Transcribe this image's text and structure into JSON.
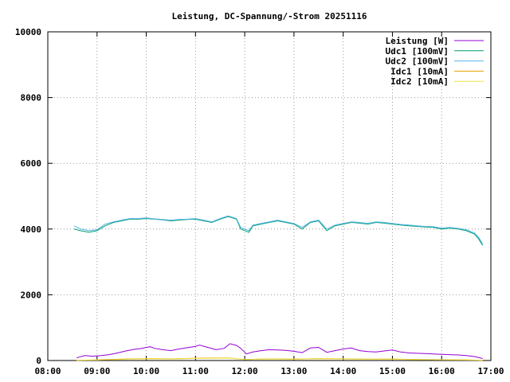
{
  "chart_data": {
    "type": "line",
    "title": "Leistung, DC-Spannung/-Strom 20251116",
    "xlabel": "",
    "ylabel": "",
    "x_ticks": [
      "08:00",
      "09:00",
      "10:00",
      "11:00",
      "12:00",
      "13:00",
      "14:00",
      "15:00",
      "16:00",
      "17:00"
    ],
    "y_ticks": [
      "0",
      "2000",
      "4000",
      "6000",
      "8000",
      "10000"
    ],
    "xlim": [
      "08:00",
      "17:00"
    ],
    "ylim": [
      0,
      10000
    ],
    "grid": true,
    "legend_position": "top-right",
    "series": [
      {
        "name": "Leistung [W]",
        "color": "#9400d3",
        "points": [
          [
            "08:35",
            80
          ],
          [
            "08:45",
            150
          ],
          [
            "08:55",
            130
          ],
          [
            "09:05",
            150
          ],
          [
            "09:15",
            180
          ],
          [
            "09:25",
            230
          ],
          [
            "09:35",
            290
          ],
          [
            "09:45",
            340
          ],
          [
            "09:55",
            370
          ],
          [
            "10:00",
            400
          ],
          [
            "10:05",
            420
          ],
          [
            "10:10",
            370
          ],
          [
            "10:20",
            330
          ],
          [
            "10:30",
            300
          ],
          [
            "10:40",
            350
          ],
          [
            "10:50",
            390
          ],
          [
            "11:00",
            430
          ],
          [
            "11:05",
            470
          ],
          [
            "11:15",
            400
          ],
          [
            "11:25",
            330
          ],
          [
            "11:35",
            370
          ],
          [
            "11:42",
            510
          ],
          [
            "11:50",
            460
          ],
          [
            "11:55",
            370
          ],
          [
            "12:02",
            200
          ],
          [
            "12:10",
            260
          ],
          [
            "12:20",
            300
          ],
          [
            "12:30",
            330
          ],
          [
            "12:40",
            320
          ],
          [
            "12:50",
            310
          ],
          [
            "13:00",
            280
          ],
          [
            "13:10",
            240
          ],
          [
            "13:20",
            380
          ],
          [
            "13:30",
            400
          ],
          [
            "13:40",
            250
          ],
          [
            "13:50",
            300
          ],
          [
            "14:00",
            350
          ],
          [
            "14:10",
            380
          ],
          [
            "14:20",
            300
          ],
          [
            "14:30",
            270
          ],
          [
            "14:40",
            260
          ],
          [
            "14:50",
            290
          ],
          [
            "15:00",
            320
          ],
          [
            "15:10",
            260
          ],
          [
            "15:20",
            230
          ],
          [
            "15:30",
            220
          ],
          [
            "15:40",
            210
          ],
          [
            "15:50",
            200
          ],
          [
            "16:00",
            190
          ],
          [
            "16:10",
            180
          ],
          [
            "16:20",
            170
          ],
          [
            "16:30",
            150
          ],
          [
            "16:40",
            120
          ],
          [
            "16:50",
            60
          ]
        ]
      },
      {
        "name": "Udc1 [100mV]",
        "color": "#009e73",
        "points": [
          [
            "08:32",
            4000
          ],
          [
            "08:40",
            3950
          ],
          [
            "08:50",
            3900
          ],
          [
            "09:00",
            3950
          ],
          [
            "09:10",
            4100
          ],
          [
            "09:20",
            4200
          ],
          [
            "09:30",
            4250
          ],
          [
            "09:40",
            4300
          ],
          [
            "09:50",
            4300
          ],
          [
            "10:00",
            4320
          ],
          [
            "10:10",
            4300
          ],
          [
            "10:20",
            4280
          ],
          [
            "10:30",
            4250
          ],
          [
            "10:40",
            4270
          ],
          [
            "10:50",
            4290
          ],
          [
            "11:00",
            4300
          ],
          [
            "11:10",
            4250
          ],
          [
            "11:20",
            4200
          ],
          [
            "11:30",
            4300
          ],
          [
            "11:40",
            4380
          ],
          [
            "11:50",
            4300
          ],
          [
            "11:55",
            4000
          ],
          [
            "12:05",
            3900
          ],
          [
            "12:10",
            4100
          ],
          [
            "12:20",
            4150
          ],
          [
            "12:30",
            4200
          ],
          [
            "12:40",
            4250
          ],
          [
            "12:50",
            4200
          ],
          [
            "13:00",
            4150
          ],
          [
            "13:10",
            4000
          ],
          [
            "13:20",
            4200
          ],
          [
            "13:30",
            4250
          ],
          [
            "13:40",
            3950
          ],
          [
            "13:50",
            4100
          ],
          [
            "14:00",
            4150
          ],
          [
            "14:10",
            4200
          ],
          [
            "14:20",
            4180
          ],
          [
            "14:30",
            4150
          ],
          [
            "14:40",
            4200
          ],
          [
            "14:50",
            4180
          ],
          [
            "15:00",
            4150
          ],
          [
            "15:10",
            4120
          ],
          [
            "15:20",
            4100
          ],
          [
            "15:30",
            4080
          ],
          [
            "15:40",
            4060
          ],
          [
            "15:50",
            4050
          ],
          [
            "16:00",
            4000
          ],
          [
            "16:10",
            4030
          ],
          [
            "16:20",
            4000
          ],
          [
            "16:30",
            3950
          ],
          [
            "16:40",
            3850
          ],
          [
            "16:45",
            3700
          ],
          [
            "16:50",
            3500
          ]
        ]
      },
      {
        "name": "Udc2 [100mV]",
        "color": "#56b4e9",
        "points": [
          [
            "08:32",
            4100
          ],
          [
            "08:40",
            4000
          ],
          [
            "08:50",
            3950
          ],
          [
            "09:00",
            3980
          ],
          [
            "09:10",
            4150
          ],
          [
            "09:20",
            4220
          ],
          [
            "09:30",
            4270
          ],
          [
            "09:40",
            4320
          ],
          [
            "09:50",
            4320
          ],
          [
            "10:00",
            4340
          ],
          [
            "10:10",
            4310
          ],
          [
            "10:20",
            4290
          ],
          [
            "10:30",
            4270
          ],
          [
            "10:40",
            4290
          ],
          [
            "10:50",
            4300
          ],
          [
            "11:00",
            4320
          ],
          [
            "11:10",
            4270
          ],
          [
            "11:20",
            4220
          ],
          [
            "11:30",
            4320
          ],
          [
            "11:40",
            4400
          ],
          [
            "11:50",
            4320
          ],
          [
            "11:55",
            4050
          ],
          [
            "12:05",
            3950
          ],
          [
            "12:10",
            4120
          ],
          [
            "12:20",
            4170
          ],
          [
            "12:30",
            4220
          ],
          [
            "12:40",
            4270
          ],
          [
            "12:50",
            4220
          ],
          [
            "13:00",
            4170
          ],
          [
            "13:10",
            4050
          ],
          [
            "13:20",
            4220
          ],
          [
            "13:30",
            4270
          ],
          [
            "13:40",
            4000
          ],
          [
            "13:50",
            4120
          ],
          [
            "14:00",
            4170
          ],
          [
            "14:10",
            4220
          ],
          [
            "14:20",
            4200
          ],
          [
            "14:30",
            4170
          ],
          [
            "14:40",
            4220
          ],
          [
            "14:50",
            4200
          ],
          [
            "15:00",
            4170
          ],
          [
            "15:10",
            4140
          ],
          [
            "15:20",
            4120
          ],
          [
            "15:30",
            4100
          ],
          [
            "15:40",
            4080
          ],
          [
            "15:50",
            4070
          ],
          [
            "16:00",
            4030
          ],
          [
            "16:10",
            4050
          ],
          [
            "16:20",
            4020
          ],
          [
            "16:30",
            3980
          ],
          [
            "16:40",
            3880
          ],
          [
            "16:45",
            3750
          ],
          [
            "16:50",
            3550
          ]
        ]
      },
      {
        "name": "Idc1 [10mA]",
        "color": "#e69f00",
        "points": [
          [
            "08:35",
            10
          ],
          [
            "09:00",
            20
          ],
          [
            "09:30",
            40
          ],
          [
            "10:00",
            60
          ],
          [
            "10:30",
            50
          ],
          [
            "11:00",
            70
          ],
          [
            "11:40",
            80
          ],
          [
            "12:00",
            30
          ],
          [
            "12:30",
            50
          ],
          [
            "13:00",
            40
          ],
          [
            "13:30",
            60
          ],
          [
            "14:00",
            50
          ],
          [
            "14:30",
            40
          ],
          [
            "15:00",
            45
          ],
          [
            "15:30",
            30
          ],
          [
            "16:00",
            25
          ],
          [
            "16:30",
            20
          ],
          [
            "16:50",
            10
          ]
        ]
      },
      {
        "name": "Idc2 [10mA]",
        "color": "#f0e442",
        "points": [
          [
            "08:35",
            8
          ],
          [
            "09:00",
            18
          ],
          [
            "09:30",
            35
          ],
          [
            "10:00",
            55
          ],
          [
            "10:30",
            45
          ],
          [
            "11:00",
            62
          ],
          [
            "11:40",
            72
          ],
          [
            "12:00",
            28
          ],
          [
            "12:30",
            45
          ],
          [
            "13:00",
            36
          ],
          [
            "13:30",
            55
          ],
          [
            "14:00",
            45
          ],
          [
            "14:30",
            36
          ],
          [
            "15:00",
            40
          ],
          [
            "15:30",
            27
          ],
          [
            "16:00",
            22
          ],
          [
            "16:30",
            18
          ],
          [
            "16:50",
            8
          ]
        ]
      }
    ]
  }
}
